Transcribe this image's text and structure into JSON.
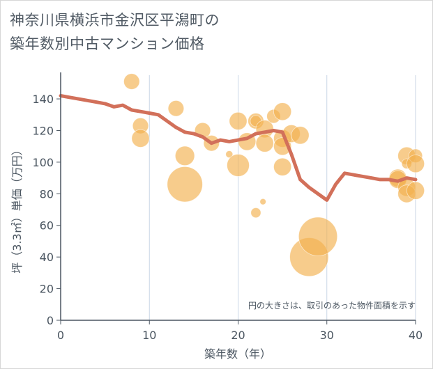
{
  "title": {
    "line1": "神奈川県横浜市金沢区平潟町の",
    "line2": "築年数別中古マンション価格"
  },
  "colors": {
    "bubble": "#f2b04f",
    "line": "#d2705a",
    "grid": "#c9d6e6",
    "axis": "#4a5560"
  },
  "chart_data": {
    "type": "scatter",
    "xlabel": "築年数（年）",
    "ylabel": "坪（3.3㎡）単価（万円）",
    "xlim": [
      0,
      40
    ],
    "ylim": [
      0,
      155
    ],
    "xticks": [
      0,
      10,
      20,
      30,
      40
    ],
    "yticks": [
      0,
      20,
      40,
      60,
      80,
      100,
      120,
      140
    ],
    "grid": "vertical",
    "note": "円の大きさは、取引のあった物件面積を示す",
    "bubbles": [
      {
        "x": 8,
        "y": 151,
        "size": 2
      },
      {
        "x": 9,
        "y": 123,
        "size": 2
      },
      {
        "x": 9,
        "y": 115,
        "size": 2.5
      },
      {
        "x": 13,
        "y": 134,
        "size": 2
      },
      {
        "x": 14,
        "y": 104,
        "size": 3
      },
      {
        "x": 14,
        "y": 86,
        "size": 10
      },
      {
        "x": 16,
        "y": 120,
        "size": 2
      },
      {
        "x": 17,
        "y": 112,
        "size": 2
      },
      {
        "x": 19,
        "y": 105,
        "size": 0.4
      },
      {
        "x": 20,
        "y": 126,
        "size": 2.5
      },
      {
        "x": 20,
        "y": 98,
        "size": 4
      },
      {
        "x": 21,
        "y": 113,
        "size": 2.5
      },
      {
        "x": 22,
        "y": 126,
        "size": 2
      },
      {
        "x": 22,
        "y": 126,
        "size": 1
      },
      {
        "x": 22,
        "y": 68,
        "size": 0.8
      },
      {
        "x": 22.8,
        "y": 75,
        "size": 0.3
      },
      {
        "x": 23,
        "y": 121,
        "size": 2.5
      },
      {
        "x": 23,
        "y": 112,
        "size": 2.5
      },
      {
        "x": 24,
        "y": 129,
        "size": 1.5
      },
      {
        "x": 25,
        "y": 132,
        "size": 2.5
      },
      {
        "x": 25,
        "y": 115,
        "size": 2.5
      },
      {
        "x": 25,
        "y": 110,
        "size": 2.5
      },
      {
        "x": 25,
        "y": 97,
        "size": 2.5
      },
      {
        "x": 26,
        "y": 118,
        "size": 2.5
      },
      {
        "x": 27,
        "y": 117,
        "size": 2.5
      },
      {
        "x": 28,
        "y": 40,
        "size": 12
      },
      {
        "x": 29,
        "y": 53,
        "size": 12
      },
      {
        "x": 38,
        "y": 90,
        "size": 2.5
      },
      {
        "x": 38,
        "y": 89,
        "size": 2.5
      },
      {
        "x": 39,
        "y": 104,
        "size": 2.5
      },
      {
        "x": 39,
        "y": 99,
        "size": 0.8
      },
      {
        "x": 39,
        "y": 84,
        "size": 2.5
      },
      {
        "x": 39,
        "y": 80,
        "size": 2.5
      },
      {
        "x": 40,
        "y": 104,
        "size": 1.5
      },
      {
        "x": 40,
        "y": 99,
        "size": 2.5
      },
      {
        "x": 40,
        "y": 82,
        "size": 2.5
      }
    ],
    "series": [
      {
        "x": [
          0,
          1,
          2,
          3,
          4,
          5,
          6,
          7,
          8,
          9,
          10,
          11,
          12,
          13,
          14,
          15,
          16,
          17,
          18,
          19,
          20,
          21,
          22,
          23,
          24,
          25,
          26,
          27,
          28,
          29,
          30,
          31,
          32,
          33,
          34,
          35,
          36,
          37,
          38,
          39,
          40
        ],
        "values": [
          142,
          141,
          140,
          139,
          138,
          137,
          135,
          136,
          133,
          132,
          131,
          130,
          126,
          122,
          119,
          118,
          116,
          112,
          114,
          113,
          114,
          115,
          118,
          119,
          120,
          119,
          105,
          89,
          84,
          80,
          76,
          86,
          93,
          92,
          91,
          90,
          89,
          89,
          88,
          90,
          89
        ]
      }
    ]
  }
}
